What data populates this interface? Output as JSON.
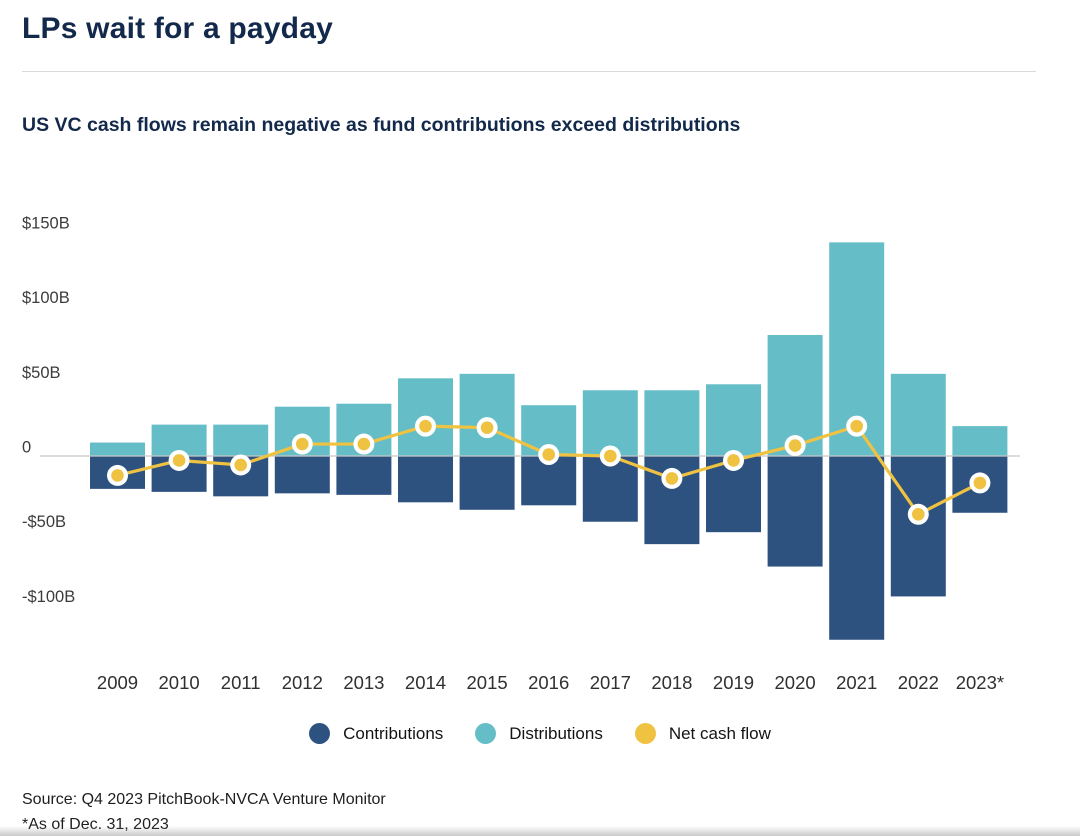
{
  "header": {
    "title": "LPs wait for a payday",
    "subtitle": "US VC cash flows remain negative as fund contributions exceed distributions"
  },
  "legend": [
    {
      "label": "Contributions",
      "color": "#2E527F"
    },
    {
      "label": "Distributions",
      "color": "#65BEC7"
    },
    {
      "label": "Net cash flow",
      "color": "#EFC241"
    }
  ],
  "chart_data": {
    "type": "bar",
    "subtype": "diverging-bars-with-line-overlay",
    "title": "US VC cash flows ($B)",
    "categories": [
      "2009",
      "2010",
      "2011",
      "2012",
      "2013",
      "2014",
      "2015",
      "2016",
      "2017",
      "2018",
      "2019",
      "2020",
      "2021",
      "2022",
      "2023*"
    ],
    "series": [
      {
        "name": "Contributions",
        "type": "bar",
        "color": "#2E527F",
        "values": [
          -22,
          -24,
          -27,
          -25,
          -26,
          -31,
          -36,
          -33,
          -44,
          -59,
          -51,
          -74,
          -123,
          -94,
          -38
        ]
      },
      {
        "name": "Distributions",
        "type": "bar",
        "color": "#65BEC7",
        "values": [
          9,
          21,
          21,
          33,
          35,
          52,
          55,
          34,
          44,
          44,
          48,
          81,
          143,
          55,
          20
        ]
      },
      {
        "name": "Net cash flow",
        "type": "line",
        "color": "#EFC241",
        "marker_fill": "#EFC241",
        "marker_ring": "#FFFFFF",
        "values": [
          -13,
          -3,
          -6,
          8,
          8,
          20,
          19,
          1,
          0,
          -15,
          -3,
          7,
          20,
          -39,
          -18
        ]
      }
    ],
    "y_ticks": [
      {
        "value": 150,
        "label": "$150B"
      },
      {
        "value": 100,
        "label": "$100B"
      },
      {
        "value": 50,
        "label": "$50B"
      },
      {
        "value": 0,
        "label": "0"
      },
      {
        "value": -50,
        "label": "-$50B"
      },
      {
        "value": -100,
        "label": "-$100B"
      }
    ],
    "ylim": [
      -130,
      155
    ],
    "unit": "USD billions",
    "zero_line": true,
    "grid": "zero-line-only",
    "legend_position": "bottom",
    "axis_text_color": "#3C3C3C",
    "year_text_color": "#303030",
    "zero_line_color": "#C8C8C8"
  },
  "footer": {
    "source": "Source: Q4 2023 PitchBook-NVCA Venture Monitor",
    "footnote": "*As of Dec. 31, 2023"
  }
}
